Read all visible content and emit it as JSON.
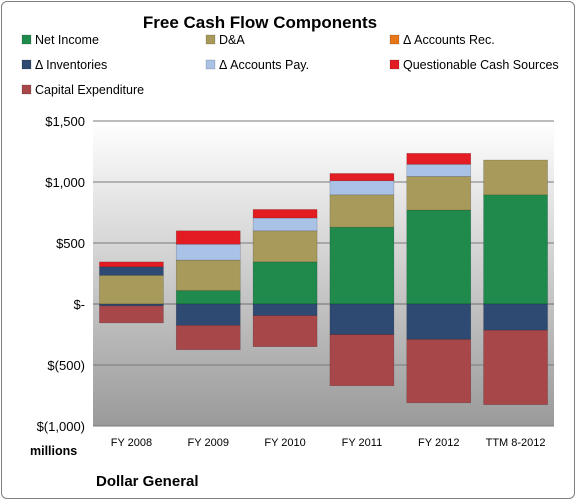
{
  "chart_data": {
    "type": "bar",
    "stacked": true,
    "title": "Free Cash Flow Components",
    "units_label": "millions",
    "company": "Dollar General",
    "categories": [
      "FY 2008",
      "FY 2009",
      "FY 2010",
      "FY 2011",
      "FY 2012",
      "TTM 8-2012"
    ],
    "ylim": [
      -1000,
      1500
    ],
    "yticks": [
      -1000,
      -500,
      0,
      500,
      1000,
      1500
    ],
    "ytick_labels": [
      "$(1,000)",
      "$(500)",
      "$-",
      "$500",
      "$1,000",
      "$1,500"
    ],
    "grid": true,
    "legend_position": "top",
    "series": [
      {
        "name": "Net Income",
        "color": "#1f8a4c",
        "values": [
          0,
          110,
          345,
          630,
          770,
          895
        ]
      },
      {
        "name": "D&A",
        "color": "#a89a5a",
        "values": [
          235,
          250,
          255,
          265,
          275,
          285
        ]
      },
      {
        "name": "Δ Accounts Rec.",
        "color": "#e8761b",
        "values": [
          0,
          0,
          0,
          0,
          0,
          0
        ]
      },
      {
        "name": "Δ Inventories",
        "color": "#2e4a73",
        "values": [
          -15,
          -175,
          -95,
          -250,
          -290,
          -215
        ]
      },
      {
        "name": "Δ Accounts Pay.",
        "color": "#a9c2e6",
        "values": [
          0,
          130,
          105,
          115,
          100,
          0
        ]
      },
      {
        "name": "Questionable Cash Sources",
        "color": "#e31b23",
        "values": [
          0,
          110,
          70,
          60,
          90,
          0
        ]
      },
      {
        "name": "Capital Expenditure",
        "color": "#a8474a",
        "values": [
          -140,
          -200,
          -255,
          -420,
          -520,
          -610
        ]
      }
    ],
    "extra_positive": [
      {
        "series": "Δ Inventories",
        "values": [
          70,
          0,
          0,
          0,
          0,
          0
        ]
      },
      {
        "series": "Questionable Cash Sources",
        "values": [
          40,
          0,
          0,
          0,
          0,
          0
        ]
      }
    ]
  }
}
